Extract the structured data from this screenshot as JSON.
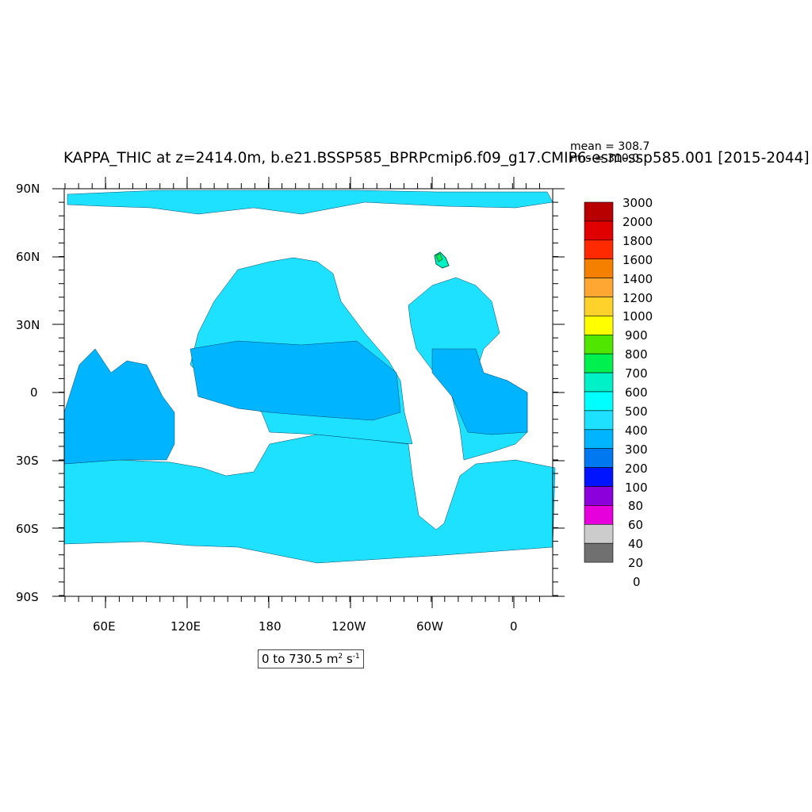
{
  "title": "KAPPA_THIC at z=2414.0m, b.e21.BSSP585_BPRPcmip6.f09_g17.CMIP6-esm-ssp585.001 [2015-2044]",
  "stats": {
    "mean": "mean = 308.7",
    "rms": "rms = 310.0"
  },
  "range": {
    "text": "0 to 730.5 m",
    "sup1": "2",
    "text2": " s",
    "sup2": "-1"
  },
  "y_ticks": [
    "90N",
    "60N",
    "30N",
    "0",
    "30S",
    "60S",
    "90S"
  ],
  "x_ticks": [
    "60E",
    "120E",
    "180",
    "120W",
    "60W",
    "0"
  ],
  "legend": {
    "levels": [
      "3000",
      "2000",
      "1800",
      "1600",
      "1400",
      "1200",
      "1000",
      "900",
      "800",
      "700",
      "600",
      "500",
      "400",
      "300",
      "200",
      "100",
      "80",
      "60",
      "40",
      "20",
      "0"
    ],
    "colors": [
      "#b80000",
      "#e00000",
      "#ff2a00",
      "#f58000",
      "#ffa633",
      "#ffd12a",
      "#ffff00",
      "#50e600",
      "#00f050",
      "#00f0c8",
      "#00ffff",
      "#1ee1ff",
      "#00b4ff",
      "#0078f0",
      "#0014ff",
      "#8c00dc",
      "#e600dc",
      "#cccccc",
      "#707070"
    ]
  },
  "colors": {
    "ocean_main": "#1ee1ff",
    "ocean_band": "#00b4ff",
    "land": "#ffffff"
  }
}
